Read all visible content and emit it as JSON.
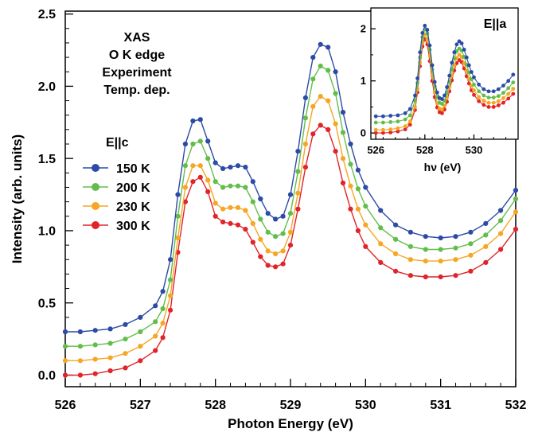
{
  "colors": {
    "150 K": "#2B4BA6",
    "200 K": "#63BD4A",
    "230 K": "#F5A623",
    "300 K": "#E0242A"
  },
  "chart_data": [
    {
      "type": "line",
      "title": "",
      "annotation_lines": [
        "XAS",
        "O K edge",
        "Experiment",
        "Temp. dep."
      ],
      "legend_title": "E||c",
      "legend_placement": "left-middle",
      "xlabel": "Photon Energy (eV)",
      "ylabel": "Intensity (arb. units)",
      "xlim": [
        526,
        532
      ],
      "ylim": [
        -0.08,
        2.52
      ],
      "xticks": [
        "526",
        "527",
        "528",
        "529",
        "530",
        "531",
        "532"
      ],
      "yticks": [
        "0.0",
        "0.5",
        "1.0",
        "1.5",
        "2.0",
        "2.5"
      ],
      "grid": false,
      "markers": "filled-circle",
      "x": [
        526.0,
        526.2,
        526.4,
        526.6,
        526.8,
        527.0,
        527.2,
        527.3,
        527.4,
        527.5,
        527.6,
        527.7,
        527.8,
        527.9,
        528.0,
        528.1,
        528.2,
        528.3,
        528.4,
        528.5,
        528.6,
        528.7,
        528.8,
        528.9,
        529.0,
        529.1,
        529.2,
        529.3,
        529.4,
        529.5,
        529.6,
        529.7,
        529.8,
        529.9,
        530.0,
        530.2,
        530.4,
        530.6,
        530.8,
        531.0,
        531.2,
        531.4,
        531.6,
        531.8,
        532.0
      ],
      "series": [
        {
          "name": "150 K",
          "values": [
            0.3,
            0.3,
            0.31,
            0.32,
            0.35,
            0.4,
            0.48,
            0.58,
            0.8,
            1.25,
            1.6,
            1.76,
            1.77,
            1.62,
            1.47,
            1.43,
            1.44,
            1.45,
            1.44,
            1.34,
            1.22,
            1.12,
            1.08,
            1.1,
            1.25,
            1.55,
            1.92,
            2.2,
            2.29,
            2.27,
            2.1,
            1.82,
            1.6,
            1.42,
            1.3,
            1.14,
            1.04,
            0.99,
            0.96,
            0.95,
            0.96,
            0.99,
            1.05,
            1.14,
            1.28
          ]
        },
        {
          "name": "200 K",
          "values": [
            0.2,
            0.2,
            0.21,
            0.22,
            0.25,
            0.3,
            0.37,
            0.46,
            0.66,
            1.1,
            1.45,
            1.6,
            1.62,
            1.5,
            1.34,
            1.3,
            1.31,
            1.31,
            1.3,
            1.2,
            1.08,
            0.99,
            0.96,
            0.98,
            1.12,
            1.41,
            1.78,
            2.05,
            2.14,
            2.11,
            1.95,
            1.68,
            1.46,
            1.29,
            1.17,
            1.02,
            0.94,
            0.89,
            0.87,
            0.87,
            0.88,
            0.91,
            0.97,
            1.07,
            1.22
          ]
        },
        {
          "name": "230 K",
          "values": [
            0.1,
            0.1,
            0.11,
            0.12,
            0.15,
            0.2,
            0.27,
            0.36,
            0.55,
            0.95,
            1.3,
            1.45,
            1.45,
            1.35,
            1.19,
            1.15,
            1.16,
            1.16,
            1.14,
            1.05,
            0.94,
            0.86,
            0.84,
            0.86,
            0.99,
            1.26,
            1.6,
            1.86,
            1.93,
            1.9,
            1.74,
            1.5,
            1.31,
            1.15,
            1.04,
            0.91,
            0.84,
            0.8,
            0.79,
            0.79,
            0.8,
            0.83,
            0.89,
            0.98,
            1.13
          ]
        },
        {
          "name": "300 K",
          "values": [
            0.0,
            0.0,
            0.01,
            0.03,
            0.05,
            0.1,
            0.17,
            0.26,
            0.45,
            0.85,
            1.2,
            1.34,
            1.37,
            1.27,
            1.1,
            1.06,
            1.05,
            1.04,
            1.01,
            0.92,
            0.82,
            0.76,
            0.75,
            0.77,
            0.9,
            1.15,
            1.44,
            1.67,
            1.73,
            1.7,
            1.55,
            1.33,
            1.15,
            1.0,
            0.89,
            0.78,
            0.72,
            0.69,
            0.68,
            0.68,
            0.69,
            0.72,
            0.78,
            0.87,
            1.01
          ]
        }
      ]
    },
    {
      "type": "line",
      "title": "",
      "annotation": "E||a",
      "legend_placement": "none",
      "xlabel": "hν (eV)",
      "ylabel": "",
      "xlim": [
        525.8,
        531.8
      ],
      "ylim": [
        -0.12,
        2.4
      ],
      "xticks": [
        "526",
        "528",
        "530"
      ],
      "yticks": [
        "0",
        "1",
        "2"
      ],
      "grid": false,
      "markers": "filled-circle",
      "x": [
        526.0,
        526.3,
        526.6,
        526.9,
        527.2,
        527.4,
        527.6,
        527.7,
        527.8,
        527.9,
        528.0,
        528.1,
        528.2,
        528.3,
        528.4,
        528.5,
        528.6,
        528.7,
        528.8,
        528.9,
        529.0,
        529.1,
        529.2,
        529.3,
        529.4,
        529.5,
        529.6,
        529.7,
        529.8,
        529.9,
        530.0,
        530.2,
        530.4,
        530.6,
        530.8,
        531.0,
        531.2,
        531.4,
        531.6
      ],
      "series": [
        {
          "name": "150 K",
          "values": [
            0.32,
            0.32,
            0.33,
            0.34,
            0.38,
            0.46,
            0.72,
            1.05,
            1.55,
            1.92,
            2.06,
            1.98,
            1.68,
            1.3,
            0.98,
            0.78,
            0.67,
            0.65,
            0.72,
            0.88,
            1.1,
            1.35,
            1.55,
            1.7,
            1.76,
            1.72,
            1.6,
            1.45,
            1.3,
            1.17,
            1.07,
            0.93,
            0.84,
            0.8,
            0.8,
            0.84,
            0.91,
            1.0,
            1.12
          ]
        },
        {
          "name": "200 K",
          "values": [
            0.2,
            0.2,
            0.21,
            0.22,
            0.26,
            0.34,
            0.62,
            0.96,
            1.45,
            1.84,
            1.99,
            1.91,
            1.6,
            1.22,
            0.9,
            0.69,
            0.58,
            0.56,
            0.62,
            0.77,
            0.98,
            1.22,
            1.43,
            1.57,
            1.62,
            1.58,
            1.46,
            1.31,
            1.16,
            1.03,
            0.93,
            0.8,
            0.72,
            0.68,
            0.68,
            0.71,
            0.77,
            0.86,
            0.97
          ]
        },
        {
          "name": "230 K",
          "values": [
            0.06,
            0.06,
            0.07,
            0.09,
            0.13,
            0.22,
            0.5,
            0.85,
            1.35,
            1.74,
            1.89,
            1.8,
            1.48,
            1.1,
            0.78,
            0.57,
            0.47,
            0.45,
            0.52,
            0.67,
            0.88,
            1.1,
            1.3,
            1.44,
            1.5,
            1.46,
            1.34,
            1.19,
            1.04,
            0.91,
            0.82,
            0.69,
            0.62,
            0.58,
            0.58,
            0.61,
            0.67,
            0.75,
            0.85
          ]
        },
        {
          "name": "300 K",
          "values": [
            0.0,
            0.0,
            0.01,
            0.03,
            0.07,
            0.16,
            0.44,
            0.78,
            1.28,
            1.66,
            1.8,
            1.7,
            1.38,
            1.0,
            0.69,
            0.49,
            0.4,
            0.38,
            0.45,
            0.6,
            0.8,
            1.01,
            1.2,
            1.34,
            1.4,
            1.36,
            1.24,
            1.09,
            0.95,
            0.82,
            0.73,
            0.61,
            0.54,
            0.5,
            0.5,
            0.53,
            0.58,
            0.66,
            0.75
          ]
        }
      ]
    }
  ]
}
